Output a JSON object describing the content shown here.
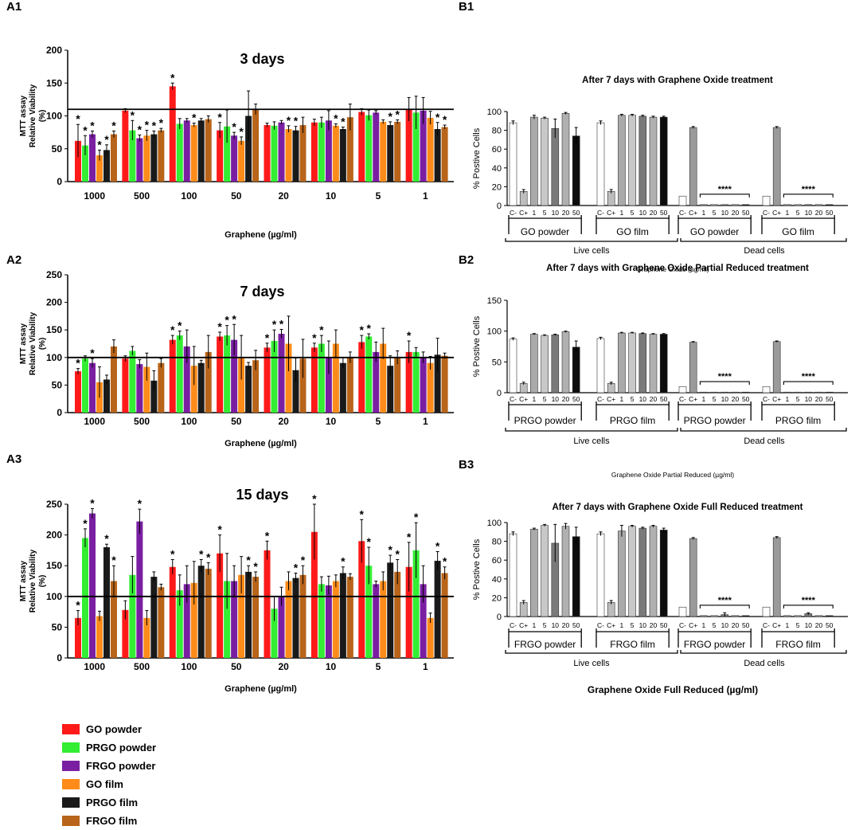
{
  "panel_labels": {
    "A1": "A1",
    "A2": "A2",
    "A3": "A3",
    "B1": "B1",
    "B2": "B2",
    "B3": "B3"
  },
  "legend": [
    {
      "label": "GO powder",
      "color": "#ff1a1a"
    },
    {
      "label": "PRGO powder",
      "color": "#33ee33"
    },
    {
      "label": "FRGO powder",
      "color": "#7a1fa2"
    },
    {
      "label": "GO film",
      "color": "#ff8c1a"
    },
    {
      "label": "PRGO film",
      "color": "#1a1a1a"
    },
    {
      "label": "FRGO film",
      "color": "#b8641a"
    }
  ],
  "chart_data": [
    {
      "id": "A1",
      "type": "bar",
      "title": "3 days",
      "xlabel": "Graphene (µg/ml)",
      "ylabel": "MTT assay\nRelative Viability\n(%)",
      "ylim": [
        0,
        200
      ],
      "yticks": [
        0,
        50,
        100,
        150,
        200
      ],
      "ref_line": 110,
      "categories": [
        "1000",
        "500",
        "100",
        "50",
        "20",
        "10",
        "5",
        "1"
      ],
      "series": [
        {
          "name": "GO powder",
          "values": [
            62,
            108,
            145,
            78,
            86,
            90,
            106,
            110
          ],
          "err": [
            25,
            3,
            5,
            12,
            3,
            5,
            5,
            18
          ],
          "star": [
            1,
            0,
            1,
            1,
            0,
            0,
            0,
            0
          ]
        },
        {
          "name": "PRGO powder",
          "values": [
            55,
            78,
            88,
            84,
            85,
            90,
            101,
            105
          ],
          "err": [
            15,
            15,
            8,
            25,
            6,
            8,
            8,
            25
          ],
          "star": [
            1,
            1,
            0,
            0,
            0,
            0,
            0,
            0
          ]
        },
        {
          "name": "FRGO powder",
          "values": [
            72,
            66,
            93,
            70,
            90,
            93,
            105,
            108
          ],
          "err": [
            5,
            5,
            3,
            5,
            3,
            15,
            3,
            20
          ],
          "star": [
            1,
            1,
            0,
            1,
            0,
            0,
            0,
            0
          ]
        },
        {
          "name": "GO film",
          "values": [
            40,
            70,
            86,
            62,
            80,
            85,
            91,
            97
          ],
          "err": [
            8,
            8,
            3,
            6,
            5,
            3,
            3,
            10
          ],
          "star": [
            1,
            1,
            1,
            1,
            1,
            1,
            0,
            0
          ]
        },
        {
          "name": "PRGO film",
          "values": [
            48,
            72,
            93,
            100,
            78,
            80,
            86,
            80
          ],
          "err": [
            8,
            5,
            3,
            38,
            6,
            3,
            5,
            10
          ],
          "star": [
            1,
            1,
            0,
            0,
            1,
            1,
            1,
            1
          ]
        },
        {
          "name": "FRGO film",
          "values": [
            72,
            78,
            95,
            110,
            86,
            98,
            91,
            83
          ],
          "err": [
            5,
            3,
            5,
            8,
            12,
            20,
            3,
            3
          ],
          "star": [
            1,
            1,
            0,
            0,
            0,
            0,
            1,
            1
          ]
        }
      ]
    },
    {
      "id": "A2",
      "type": "bar",
      "title": "7 days",
      "xlabel": "Graphene (µg/ml)",
      "ylabel": "MTT assay\nRelative Viability\n(%)",
      "ylim": [
        0,
        250
      ],
      "yticks": [
        0,
        50,
        100,
        150,
        200,
        250
      ],
      "ref_line": 100,
      "categories": [
        "1000",
        "500",
        "100",
        "50",
        "20",
        "10",
        "5",
        "1"
      ],
      "series": [
        {
          "name": "GO powder",
          "values": [
            75,
            98,
            132,
            138,
            118,
            118,
            128,
            110
          ],
          "err": [
            5,
            5,
            8,
            8,
            8,
            8,
            12,
            20
          ],
          "star": [
            1,
            0,
            1,
            1,
            1,
            1,
            1,
            1
          ]
        },
        {
          "name": "PRGO powder",
          "values": [
            98,
            112,
            140,
            140,
            130,
            125,
            138,
            110
          ],
          "err": [
            5,
            8,
            8,
            18,
            20,
            15,
            5,
            8
          ],
          "star": [
            0,
            0,
            1,
            1,
            1,
            1,
            1,
            0
          ]
        },
        {
          "name": "FRGO powder",
          "values": [
            90,
            88,
            120,
            132,
            143,
            100,
            110,
            100
          ],
          "err": [
            8,
            8,
            30,
            28,
            8,
            30,
            18,
            10
          ],
          "star": [
            1,
            0,
            0,
            1,
            1,
            0,
            0,
            0
          ]
        },
        {
          "name": "GO film",
          "values": [
            55,
            83,
            85,
            100,
            125,
            125,
            125,
            90
          ],
          "err": [
            28,
            25,
            35,
            40,
            50,
            25,
            28,
            12
          ],
          "star": [
            0,
            0,
            0,
            0,
            0,
            0,
            0,
            0
          ]
        },
        {
          "name": "PRGO film",
          "values": [
            60,
            58,
            90,
            85,
            77,
            90,
            85,
            105
          ],
          "err": [
            8,
            18,
            5,
            6,
            22,
            10,
            18,
            30
          ],
          "star": [
            0,
            0,
            0,
            0,
            0,
            0,
            0,
            0
          ]
        },
        {
          "name": "FRGO film",
          "values": [
            120,
            90,
            110,
            95,
            98,
            100,
            100,
            103
          ],
          "err": [
            12,
            8,
            30,
            18,
            35,
            10,
            12,
            5
          ],
          "star": [
            0,
            0,
            0,
            0,
            0,
            0,
            0,
            0
          ]
        }
      ]
    },
    {
      "id": "A3",
      "type": "bar",
      "title": "15 days",
      "xlabel": "Graphene (µg/ml)",
      "ylabel": "MTT assay\nRelative Viability\n(%)",
      "ylim": [
        0,
        250
      ],
      "yticks": [
        0,
        50,
        100,
        150,
        200,
        250
      ],
      "ref_line": 100,
      "categories": [
        "1000",
        "500",
        "100",
        "50",
        "20",
        "10",
        "5",
        "1"
      ],
      "series": [
        {
          "name": "GO powder",
          "values": [
            65,
            78,
            148,
            170,
            175,
            205,
            190,
            148
          ],
          "err": [
            12,
            15,
            12,
            30,
            15,
            45,
            35,
            40
          ],
          "star": [
            1,
            0,
            1,
            1,
            1,
            1,
            1,
            1
          ]
        },
        {
          "name": "PRGO powder",
          "values": [
            195,
            135,
            110,
            125,
            80,
            120,
            150,
            175
          ],
          "err": [
            15,
            30,
            25,
            45,
            20,
            12,
            30,
            45
          ],
          "star": [
            1,
            0,
            0,
            0,
            0,
            0,
            1,
            1
          ]
        },
        {
          "name": "FRGO powder",
          "values": [
            235,
            222,
            120,
            125,
            100,
            118,
            120,
            120
          ],
          "err": [
            8,
            20,
            30,
            25,
            15,
            15,
            5,
            30
          ],
          "star": [
            1,
            1,
            0,
            0,
            0,
            0,
            0,
            0
          ]
        },
        {
          "name": "GO film",
          "values": [
            68,
            65,
            122,
            135,
            125,
            125,
            125,
            65
          ],
          "err": [
            8,
            12,
            35,
            30,
            15,
            10,
            15,
            8
          ],
          "star": [
            0,
            0,
            0,
            0,
            0,
            0,
            0,
            0
          ]
        },
        {
          "name": "PRGO film",
          "values": [
            180,
            132,
            150,
            140,
            130,
            138,
            155,
            158
          ],
          "err": [
            5,
            8,
            10,
            10,
            8,
            10,
            12,
            15
          ],
          "star": [
            1,
            0,
            1,
            1,
            1,
            1,
            1,
            1
          ]
        },
        {
          "name": "FRGO film",
          "values": [
            125,
            115,
            145,
            132,
            135,
            132,
            140,
            138
          ],
          "err": [
            25,
            5,
            10,
            8,
            15,
            5,
            20,
            10
          ],
          "star": [
            1,
            0,
            1,
            1,
            1,
            0,
            1,
            1
          ]
        }
      ]
    },
    {
      "id": "B1",
      "type": "bar",
      "title": "After 7 days with Graphene Oxide treatment",
      "ylabel": "% Postive Cells",
      "xlabel": "Graphene Oxide (µg/ml)",
      "ylim": [
        0,
        100
      ],
      "yticks": [
        0,
        20,
        40,
        60,
        80,
        100
      ],
      "tick_labels": [
        "C-",
        "C+",
        "1",
        "5",
        "10",
        "20",
        "50"
      ],
      "group_labels": [
        "GO powder",
        "GO film",
        "GO powder",
        "GO film"
      ],
      "section_labels": [
        "Live cells",
        "Dead cells"
      ],
      "significance": "****",
      "groups": [
        {
          "values": [
            88,
            15,
            94,
            93,
            82,
            98,
            74
          ],
          "err": [
            2,
            2,
            2,
            1,
            10,
            1,
            9
          ]
        },
        {
          "values": [
            88,
            15,
            96,
            96,
            95,
            94,
            94
          ],
          "err": [
            2,
            2,
            1,
            1,
            1,
            1,
            1
          ]
        },
        {
          "values": [
            10,
            83,
            1,
            1,
            1,
            1,
            1
          ],
          "err": [
            0,
            1,
            0,
            0,
            0,
            0,
            0
          ]
        },
        {
          "values": [
            10,
            83,
            1,
            1,
            1,
            1,
            1
          ],
          "err": [
            0,
            1,
            0,
            0,
            0,
            0,
            0
          ]
        }
      ]
    },
    {
      "id": "B2",
      "type": "bar",
      "title": "After 7 days with Graphene Oxide Partial Reduced treatment",
      "ylabel": "% Postive Cells",
      "xlabel": "Graphene Oxide Partial Reduced (µg/ml)",
      "ylim": [
        0,
        150
      ],
      "yticks": [
        0,
        50,
        100,
        150
      ],
      "tick_labels": [
        "C-",
        "C+",
        "1",
        "5",
        "10",
        "20",
        "50"
      ],
      "group_labels": [
        "PRGO powder",
        "PRGO film",
        "PRGO powder",
        "PRGO film"
      ],
      "section_labels": [
        "Live  cells",
        "Dead cells"
      ],
      "significance": "****",
      "groups": [
        {
          "values": [
            87,
            15,
            95,
            93,
            94,
            99,
            74
          ],
          "err": [
            2,
            2,
            1,
            1,
            1,
            1,
            10
          ]
        },
        {
          "values": [
            88,
            15,
            97,
            97,
            96,
            95,
            95
          ],
          "err": [
            2,
            2,
            1,
            1,
            1,
            1,
            1
          ]
        },
        {
          "values": [
            10,
            82,
            1,
            1,
            1,
            1,
            1
          ],
          "err": [
            0,
            1,
            0,
            0,
            0,
            0,
            0
          ]
        },
        {
          "values": [
            10,
            83,
            1,
            1,
            1,
            1,
            1
          ],
          "err": [
            0,
            1,
            0,
            0,
            0,
            0,
            0
          ]
        }
      ]
    },
    {
      "id": "B3",
      "type": "bar",
      "title": "After 7 days with Graphene Oxide Full Reduced treatment",
      "ylabel": "% Postive Cells",
      "xlabel": "Graphene Oxide Full Reduced (µg/ml)",
      "ylim": [
        0,
        100
      ],
      "yticks": [
        0,
        20,
        40,
        60,
        80,
        100
      ],
      "tick_labels": [
        "C-",
        "C+",
        "1",
        "5",
        "10",
        "20",
        "50"
      ],
      "group_labels": [
        "FRGO powder",
        "FRGO film",
        "FRGO powder",
        "FRGO film"
      ],
      "section_labels": [
        "Live  cells",
        "Dead cells"
      ],
      "significance": "****",
      "groups": [
        {
          "values": [
            88,
            15,
            93,
            97,
            78,
            96,
            85
          ],
          "err": [
            2,
            2,
            1,
            1,
            20,
            3,
            10
          ]
        },
        {
          "values": [
            88,
            15,
            91,
            96,
            94,
            96,
            92
          ],
          "err": [
            2,
            2,
            6,
            1,
            1,
            1,
            2
          ]
        },
        {
          "values": [
            10,
            83,
            1,
            1,
            2,
            1,
            1
          ],
          "err": [
            0,
            1,
            0,
            0,
            2,
            0,
            0
          ]
        },
        {
          "values": [
            10,
            84,
            1,
            1,
            3,
            1,
            1
          ],
          "err": [
            0,
            1,
            0,
            0,
            1,
            0,
            0
          ]
        }
      ]
    }
  ]
}
